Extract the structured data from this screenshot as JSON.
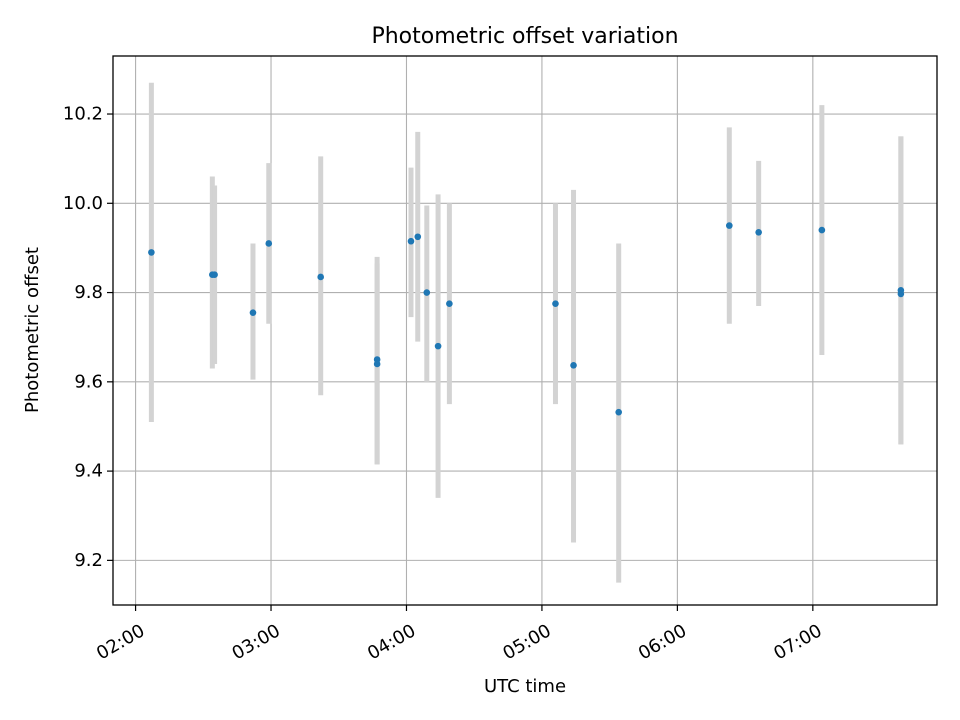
{
  "chart_data": {
    "type": "scatter",
    "title": "Photometric offset variation",
    "xlabel": "UTC time",
    "ylabel": "Photometric offset",
    "xlim": [
      "01:50",
      "07:55"
    ],
    "ylim": [
      9.1,
      10.33
    ],
    "x_ticks": [
      "02:00",
      "03:00",
      "04:00",
      "05:00",
      "06:00",
      "07:00"
    ],
    "y_ticks": [
      9.2,
      9.4,
      9.6,
      9.8,
      10.0,
      10.2
    ],
    "grid": true,
    "series": [
      {
        "marker": "point",
        "points": [
          {
            "x": "02:07",
            "y": 9.89,
            "yerr_low": 9.51,
            "yerr_high": 10.27
          },
          {
            "x": "02:34",
            "y": 9.84,
            "yerr_low": 9.63,
            "yerr_high": 10.06
          },
          {
            "x": "02:35",
            "y": 9.84,
            "yerr_low": 9.64,
            "yerr_high": 10.04
          },
          {
            "x": "02:52",
            "y": 9.755,
            "yerr_low": 9.605,
            "yerr_high": 9.91
          },
          {
            "x": "02:59",
            "y": 9.91,
            "yerr_low": 9.73,
            "yerr_high": 10.09
          },
          {
            "x": "03:22",
            "y": 9.835,
            "yerr_low": 9.57,
            "yerr_high": 10.105
          },
          {
            "x": "03:47",
            "y": 9.65,
            "yerr_low": 9.415,
            "yerr_high": 9.88
          },
          {
            "x": "03:47",
            "y": 9.64,
            "yerr_low": 9.415,
            "yerr_high": 9.865
          },
          {
            "x": "04:02",
            "y": 9.915,
            "yerr_low": 9.745,
            "yerr_high": 10.08
          },
          {
            "x": "04:05",
            "y": 9.925,
            "yerr_low": 9.69,
            "yerr_high": 10.16
          },
          {
            "x": "04:09",
            "y": 9.8,
            "yerr_low": 9.6,
            "yerr_high": 9.995
          },
          {
            "x": "04:14",
            "y": 9.68,
            "yerr_low": 9.34,
            "yerr_high": 10.02
          },
          {
            "x": "04:19",
            "y": 9.775,
            "yerr_low": 9.55,
            "yerr_high": 10.0
          },
          {
            "x": "05:06",
            "y": 9.775,
            "yerr_low": 9.55,
            "yerr_high": 10.0
          },
          {
            "x": "05:14",
            "y": 9.637,
            "yerr_low": 9.24,
            "yerr_high": 10.03
          },
          {
            "x": "05:34",
            "y": 9.532,
            "yerr_low": 9.15,
            "yerr_high": 9.91
          },
          {
            "x": "06:23",
            "y": 9.95,
            "yerr_low": 9.73,
            "yerr_high": 10.17
          },
          {
            "x": "06:36",
            "y": 9.935,
            "yerr_low": 9.77,
            "yerr_high": 10.095
          },
          {
            "x": "07:04",
            "y": 9.94,
            "yerr_low": 9.66,
            "yerr_high": 10.22
          },
          {
            "x": "07:39",
            "y": 9.805,
            "yerr_low": 9.46,
            "yerr_high": 10.15
          },
          {
            "x": "07:39",
            "y": 9.797,
            "yerr_low": 9.46,
            "yerr_high": 10.15
          }
        ]
      }
    ],
    "colors": {
      "marker": "#1f77b4",
      "errorbar": "#d3d3d3",
      "grid": "#b0b0b0",
      "axes": "#000000"
    }
  }
}
